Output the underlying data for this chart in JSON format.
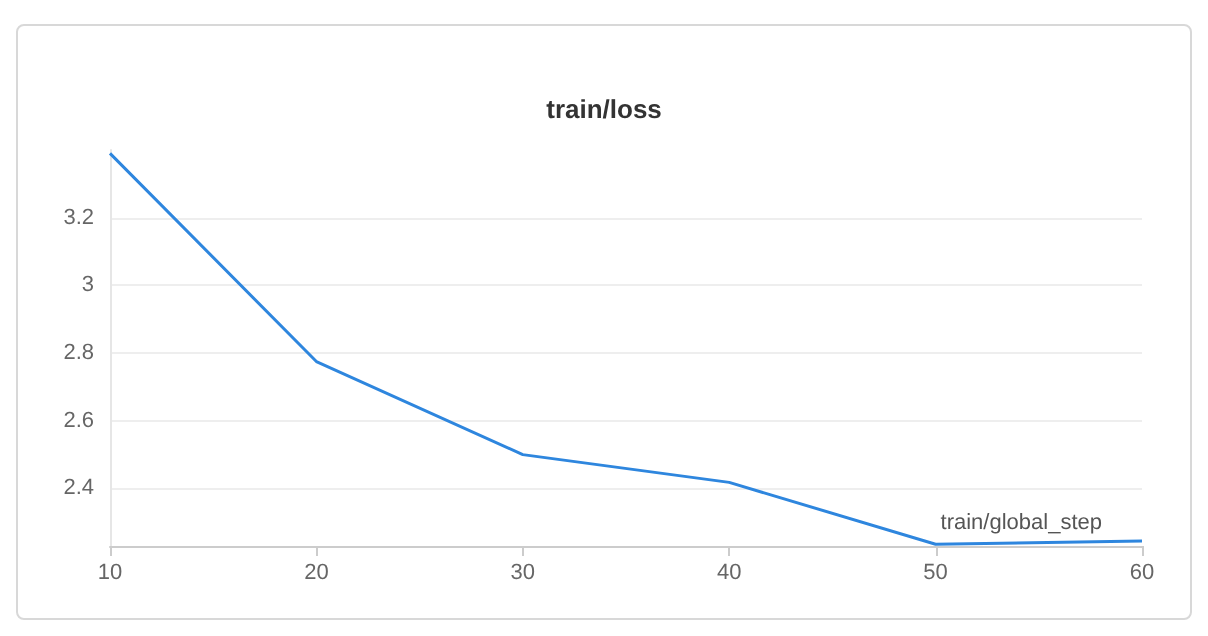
{
  "chart_data": {
    "type": "line",
    "title": "train/loss",
    "xlabel": "train/global_step",
    "x": [
      10,
      20,
      30,
      40,
      50,
      60
    ],
    "series": [
      {
        "color": "#2e86de",
        "values": [
          3.39,
          2.775,
          2.5,
          2.418,
          2.235,
          2.245
        ]
      }
    ],
    "xlim": [
      10,
      60
    ],
    "xticks": [
      10,
      20,
      30,
      40,
      50,
      60
    ],
    "ylim": [
      2.23,
      3.4
    ],
    "yticks": [
      2.4,
      2.6,
      2.8,
      3,
      3.2
    ],
    "grid": "y",
    "marker": "none",
    "line_style": "solid"
  }
}
